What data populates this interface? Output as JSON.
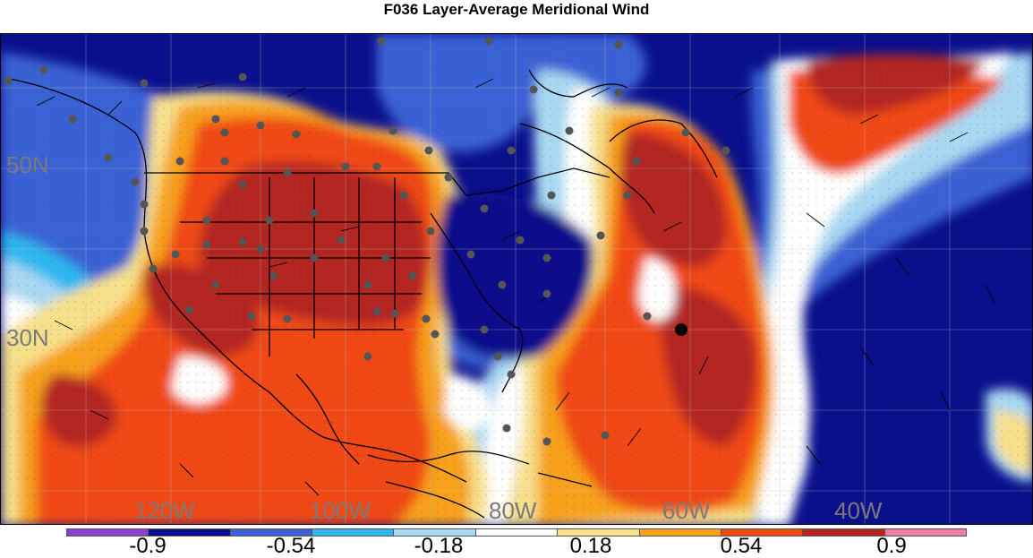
{
  "title": "F036 Layer-Average Meridional Wind",
  "map": {
    "latitude_labels": [
      "50N",
      "30N"
    ],
    "longitude_labels": [
      "120W",
      "100W",
      "80W",
      "60W",
      "40W"
    ],
    "field": "Layer-Average Meridional Wind",
    "forecast_hour": "F036",
    "highlighted_station": "black dot near 32N 60W"
  },
  "colorbar": {
    "colors": [
      "#8c3fd1",
      "#0a108c",
      "#3a62d4",
      "#2fb8f0",
      "#a9d8f2",
      "#ffffff",
      "#f7e08a",
      "#f7a11a",
      "#f04a12",
      "#b32620",
      "#f07aa8"
    ],
    "labels": [
      "-0.9",
      "-0.54",
      "-0.18",
      "0.18",
      "0.54",
      "0.9"
    ]
  }
}
